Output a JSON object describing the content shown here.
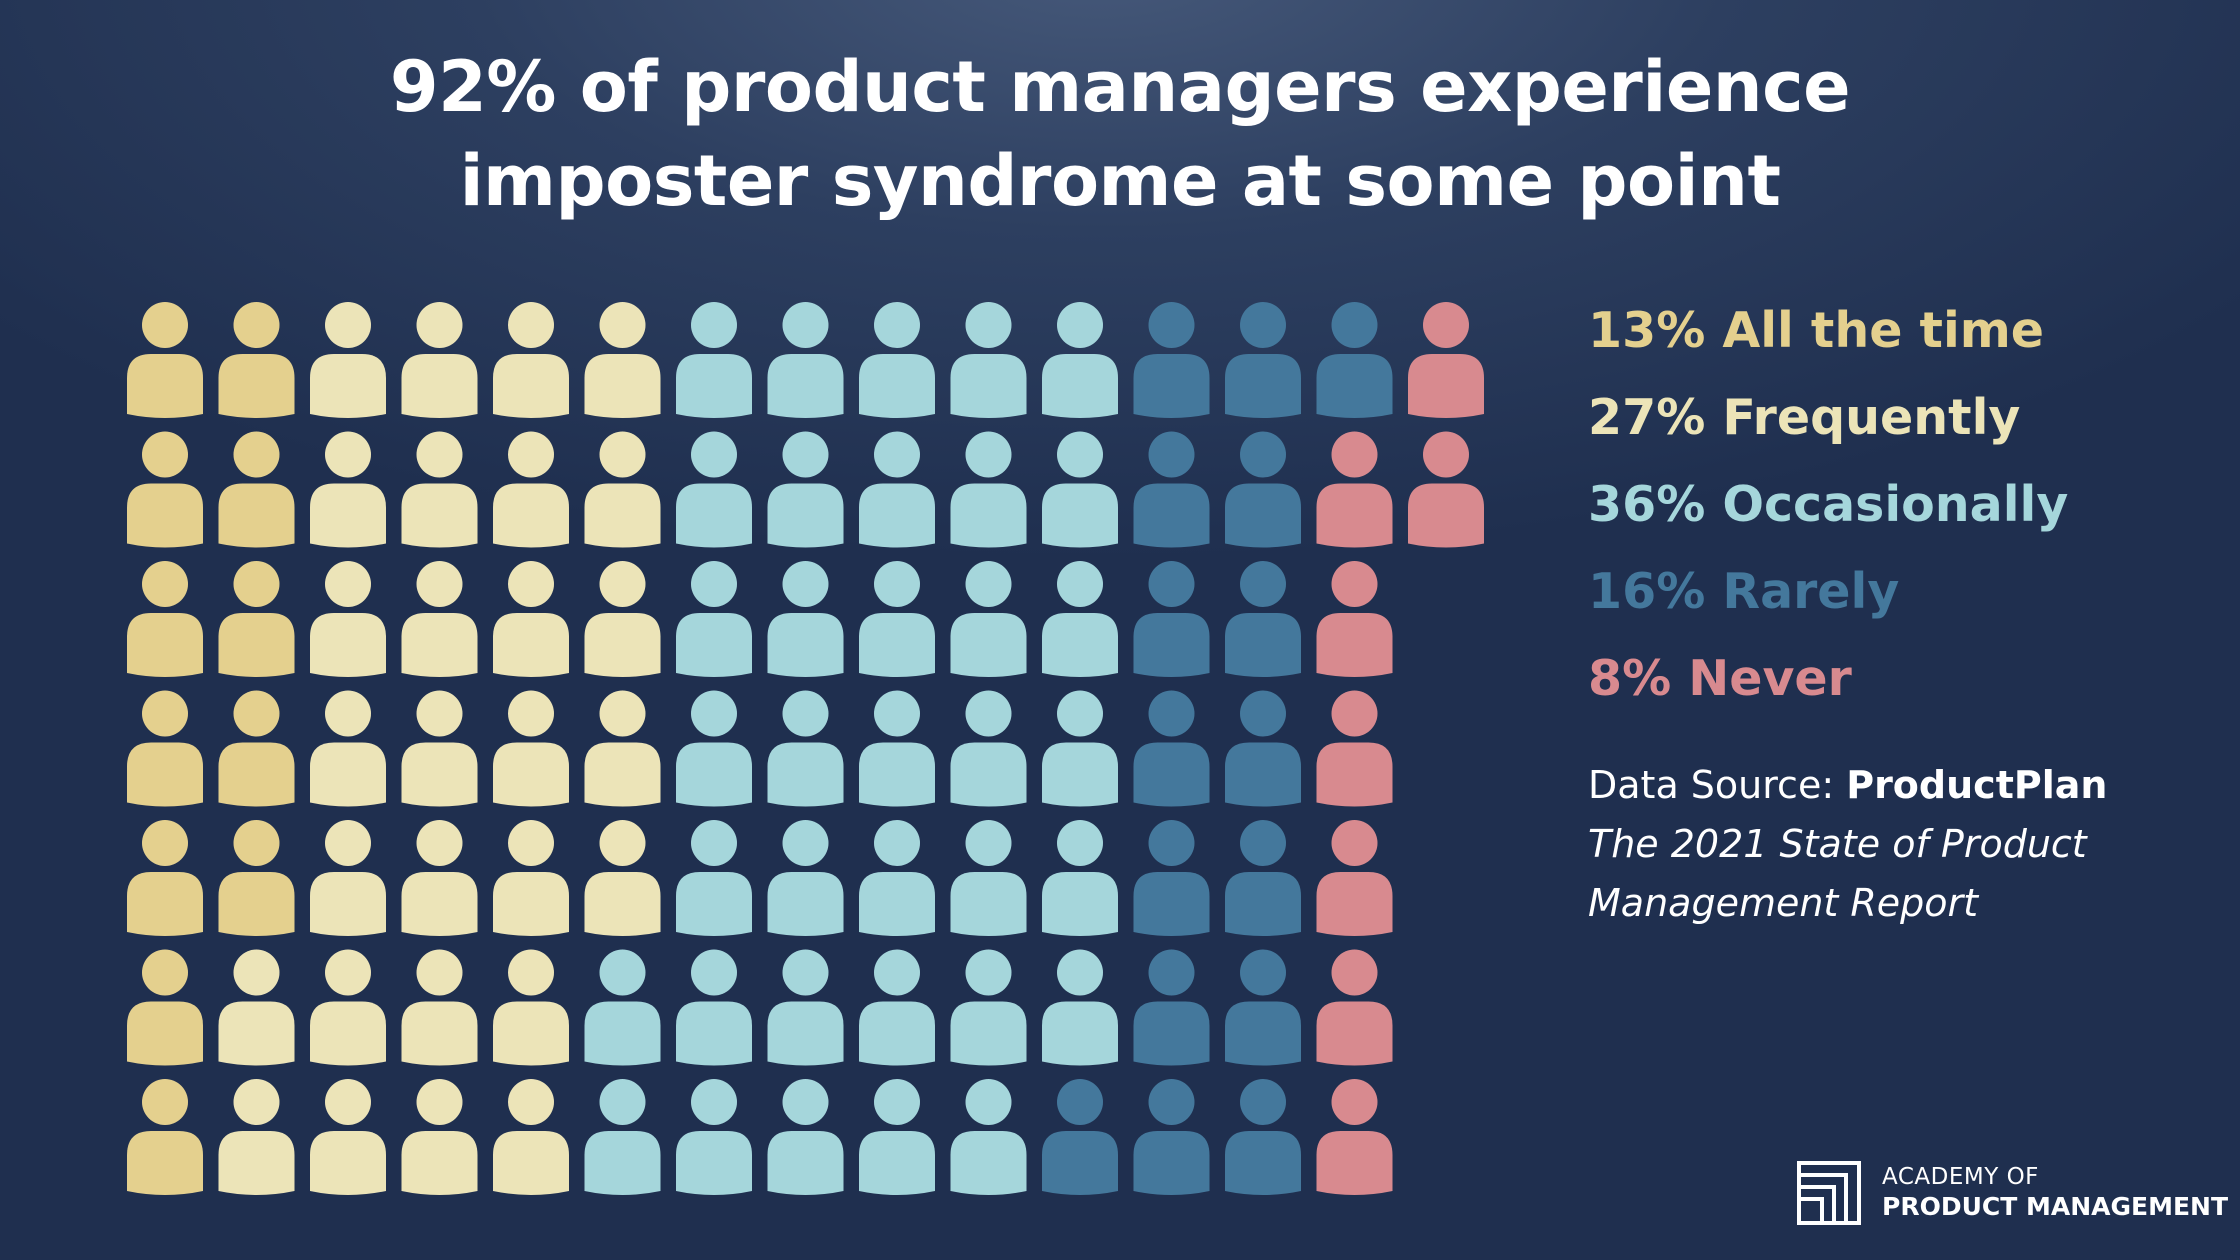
{
  "title_lines": [
    "92% of product managers experience",
    "imposter syndrome at some point"
  ],
  "chart_data": {
    "type": "pictograph",
    "unit": "person icon",
    "rows": 7,
    "series": [
      {
        "name": "All the time",
        "value": 13,
        "color_primary": "#e4d08e",
        "color_secondary": "#ece4b8"
      },
      {
        "name": "Frequently",
        "value": 27,
        "color": "#ece4b8"
      },
      {
        "name": "Occasionally",
        "value": 36,
        "color": "#a5d6db"
      },
      {
        "name": "Rarely",
        "value": 16,
        "color": "#44789c"
      },
      {
        "name": "Never",
        "value": 8,
        "color": "#d88a8f"
      }
    ]
  },
  "legend": [
    {
      "text": "13% All the time",
      "color": "#e4d08e"
    },
    {
      "text": "27% Frequently",
      "color": "#ece4b8"
    },
    {
      "text": "36% Occasionally",
      "color": "#a5d6db"
    },
    {
      "text": "16% Rarely",
      "color": "#44789c"
    },
    {
      "text": "8% Never",
      "color": "#d88a8f"
    }
  ],
  "source": {
    "label": "Data Source: ",
    "name": "ProductPlan",
    "report_line1": "The 2021 State of Product",
    "report_line2": "Management Report"
  },
  "brand": {
    "line1": "ACADEMY OF",
    "line2": "PRODUCT MANAGEMENT"
  }
}
